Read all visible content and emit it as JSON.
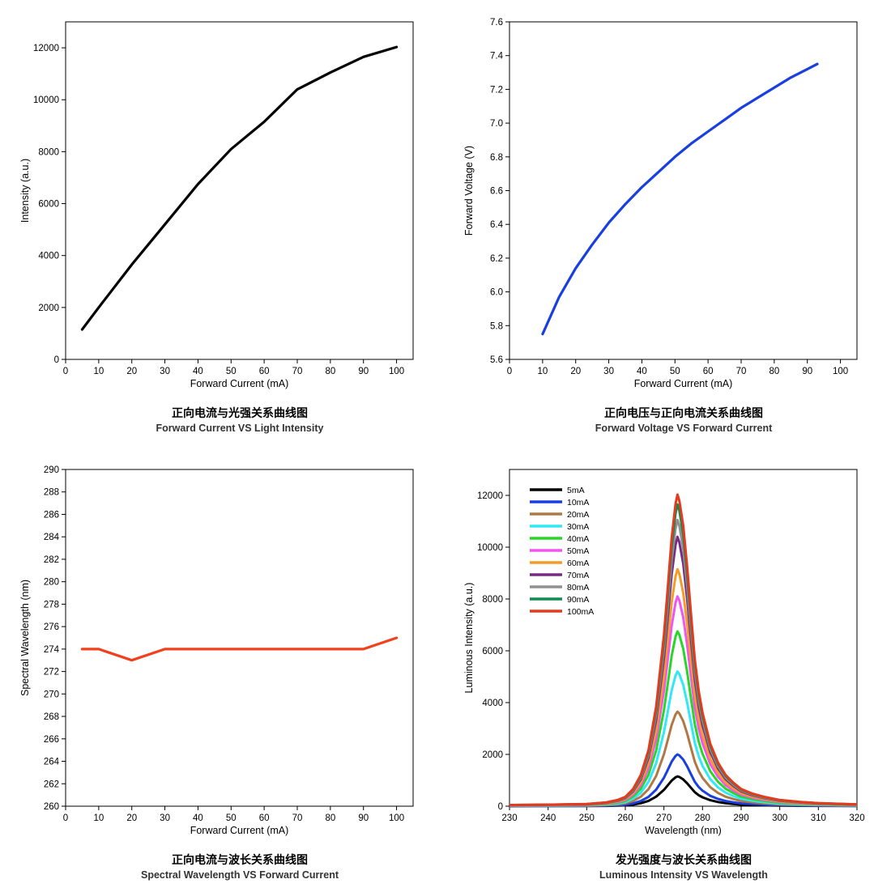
{
  "chart_data": [
    {
      "id": "intensity-vs-current",
      "type": "line",
      "title": "正向电流与光强关系曲线图",
      "subtitle": "Forward Current VS Light Intensity",
      "xlabel": "Forward Current (mA)",
      "ylabel": "Intensity (a.u.)",
      "xlim": [
        0,
        105
      ],
      "ylim": [
        0,
        13000
      ],
      "xticks": [
        0,
        10,
        20,
        30,
        40,
        50,
        60,
        70,
        80,
        90,
        100
      ],
      "yticks": [
        0,
        2000,
        4000,
        6000,
        8000,
        10000,
        12000
      ],
      "grid": false,
      "series": [
        {
          "color": "#000000",
          "x": [
            5,
            10,
            20,
            30,
            40,
            50,
            60,
            70,
            80,
            90,
            100
          ],
          "y": [
            1150,
            2000,
            3650,
            5200,
            6750,
            8100,
            9150,
            10400,
            11050,
            11650,
            12030
          ]
        }
      ]
    },
    {
      "id": "voltage-vs-current",
      "type": "line",
      "title": "正向电压与正向电流关系曲线图",
      "subtitle": "Forward Voltage VS Forward Current",
      "xlabel": "Forward Current (mA)",
      "ylabel": "Forward Voltage (V)",
      "xlim": [
        0,
        105
      ],
      "ylim": [
        5.6,
        7.6
      ],
      "xticks": [
        0,
        10,
        20,
        30,
        40,
        50,
        60,
        70,
        80,
        90,
        100
      ],
      "yticks": [
        5.6,
        5.8,
        6.0,
        6.2,
        6.4,
        6.6,
        6.8,
        7.0,
        7.2,
        7.4,
        7.6
      ],
      "grid": false,
      "series": [
        {
          "color": "#1a3fe0",
          "x": [
            10,
            15,
            20,
            25,
            30,
            35,
            40,
            45,
            50,
            55,
            60,
            65,
            70,
            75,
            80,
            85,
            90,
            93
          ],
          "y": [
            5.75,
            5.97,
            6.14,
            6.28,
            6.41,
            6.52,
            6.62,
            6.71,
            6.8,
            6.88,
            6.95,
            7.02,
            7.09,
            7.15,
            7.21,
            7.27,
            7.32,
            7.35
          ]
        }
      ]
    },
    {
      "id": "wavelength-vs-current",
      "type": "line",
      "title": "正向电流与波长关系曲线图",
      "subtitle": "Spectral Wavelength VS Forward Current",
      "xlabel": "Forward Current (mA)",
      "ylabel": "Spectral Wavelength (nm)",
      "xlim": [
        0,
        105
      ],
      "ylim": [
        260,
        290
      ],
      "xticks": [
        0,
        10,
        20,
        30,
        40,
        50,
        60,
        70,
        80,
        90,
        100
      ],
      "yticks": [
        260,
        262,
        264,
        266,
        268,
        270,
        272,
        274,
        276,
        278,
        280,
        282,
        284,
        286,
        288,
        290
      ],
      "grid": false,
      "series": [
        {
          "color": "#f0401e",
          "x": [
            5,
            10,
            20,
            30,
            40,
            50,
            60,
            70,
            80,
            90,
            100
          ],
          "y": [
            274,
            274,
            273,
            274,
            274,
            274,
            274,
            274,
            274,
            274,
            275
          ]
        }
      ]
    },
    {
      "id": "intensity-vs-wavelength",
      "type": "line",
      "title": "发光强度与波长关系曲线图",
      "subtitle": "Luminous Intensity VS Wavelength",
      "xlabel": "Wavelength (nm)",
      "ylabel": "Luminous Intensity (a.u.)",
      "xlim": [
        230,
        320
      ],
      "ylim": [
        0,
        13000
      ],
      "xticks": [
        230,
        240,
        250,
        260,
        270,
        280,
        290,
        300,
        310,
        320
      ],
      "yticks": [
        0,
        2000,
        4000,
        6000,
        8000,
        10000,
        12000
      ],
      "grid": false,
      "legend": "top-left",
      "peak_wavelength": 273.5,
      "spectrum_x": [
        230,
        240,
        250,
        255,
        258,
        260,
        262,
        264,
        266,
        268,
        270,
        271,
        272,
        273,
        273.5,
        274,
        275,
        276,
        277,
        278,
        279,
        280,
        282,
        284,
        286,
        288,
        290,
        293,
        296,
        300,
        305,
        310,
        320
      ],
      "spectrum_shape": [
        0.004,
        0.005,
        0.007,
        0.012,
        0.02,
        0.03,
        0.055,
        0.1,
        0.18,
        0.32,
        0.55,
        0.7,
        0.86,
        0.97,
        1.0,
        0.98,
        0.9,
        0.77,
        0.62,
        0.47,
        0.37,
        0.3,
        0.2,
        0.14,
        0.1,
        0.075,
        0.055,
        0.04,
        0.03,
        0.02,
        0.014,
        0.01,
        0.006
      ],
      "series": [
        {
          "name": "5mA",
          "color": "#000000",
          "peak": 1150
        },
        {
          "name": "10mA",
          "color": "#1a3fe0",
          "peak": 2000
        },
        {
          "name": "20mA",
          "color": "#b07845",
          "peak": 3650
        },
        {
          "name": "30mA",
          "color": "#33e8f5",
          "peak": 5200
        },
        {
          "name": "40mA",
          "color": "#28d628",
          "peak": 6750
        },
        {
          "name": "50mA",
          "color": "#f055f0",
          "peak": 8100
        },
        {
          "name": "60mA",
          "color": "#f59c28",
          "peak": 9150
        },
        {
          "name": "70mA",
          "color": "#7a2a86",
          "peak": 10400
        },
        {
          "name": "80mA",
          "color": "#909090",
          "peak": 11050
        },
        {
          "name": "90mA",
          "color": "#148a50",
          "peak": 11650
        },
        {
          "name": "100mA",
          "color": "#e53a1e",
          "peak": 12030
        }
      ]
    }
  ]
}
